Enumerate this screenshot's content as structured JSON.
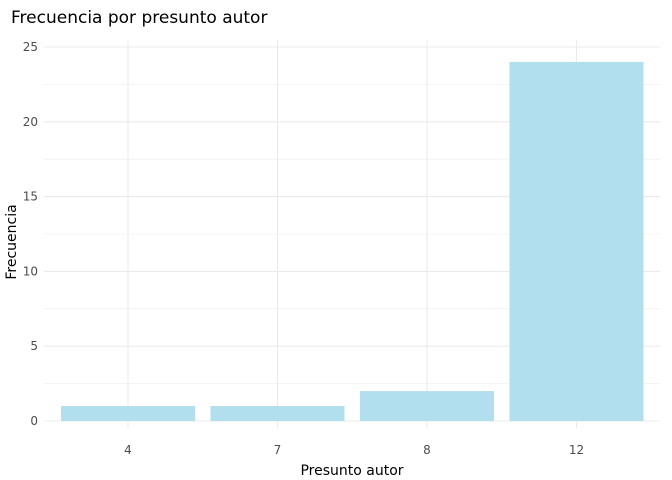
{
  "chart_data": {
    "type": "bar",
    "title": "Frecuencia por presunto autor",
    "xlabel": "Presunto autor",
    "ylabel": "Frecuencia",
    "categories": [
      "4",
      "7",
      "8",
      "12"
    ],
    "values": [
      1,
      1,
      2,
      24
    ],
    "ylim": [
      0,
      25
    ],
    "yticks": [
      "0",
      "5",
      "10",
      "15",
      "20",
      "25"
    ],
    "grid": true,
    "legend": "none",
    "colors": {
      "bar": "#b1dfed",
      "grid": "#ebebeb",
      "text": "#000000",
      "tick_text": "#4d4d4d",
      "background": "#ffffff"
    }
  }
}
